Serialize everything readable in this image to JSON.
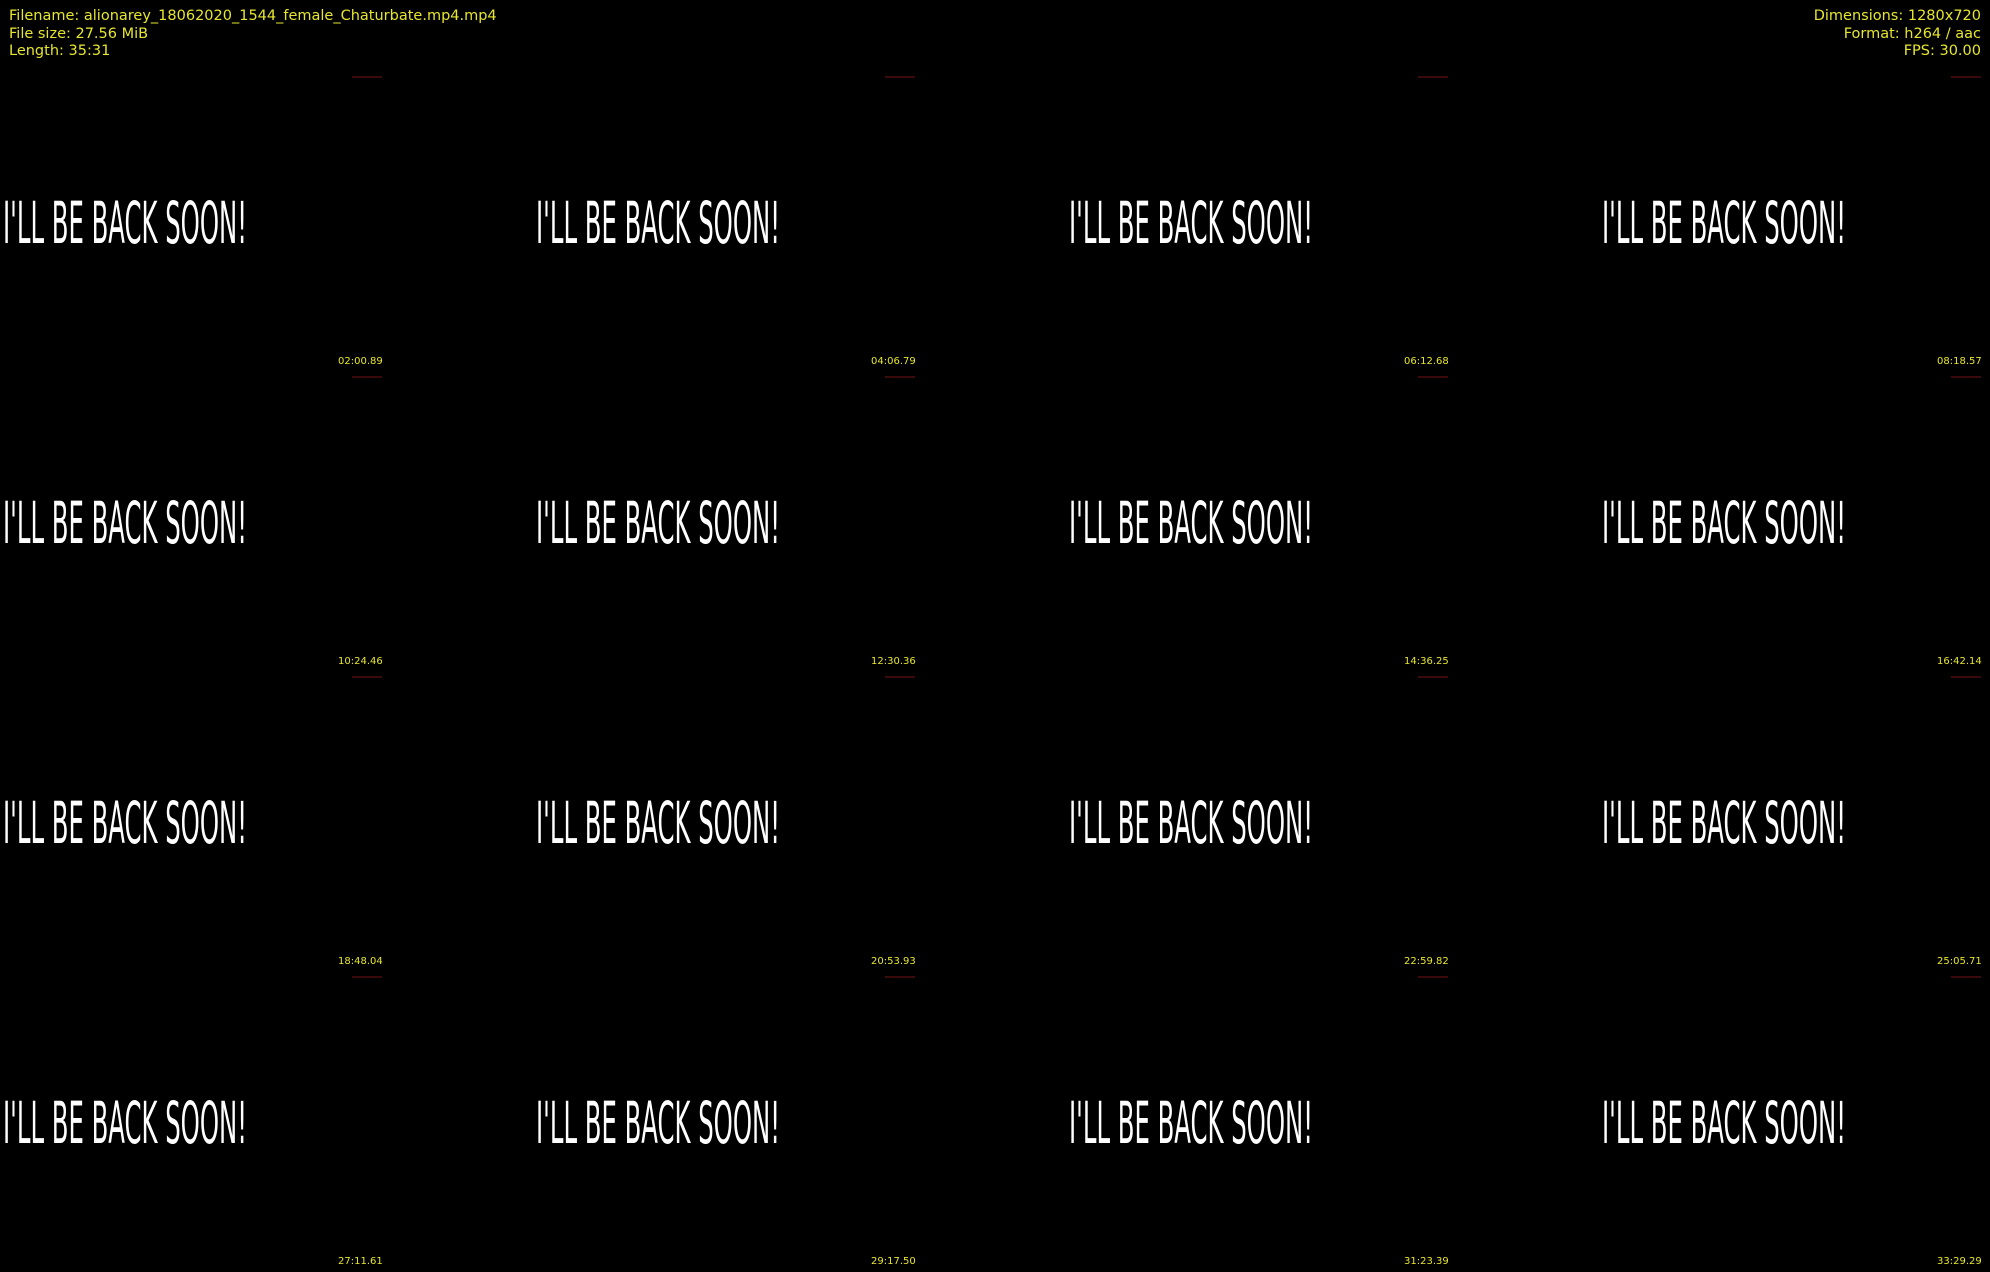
{
  "header": {
    "filename": "Filename: alionarey_18062020_1544_female_Chaturbate.mp4.mp4",
    "file_size": "File size: 27.56 MiB",
    "length": "Length: 35:31",
    "dimensions": "Dimensions: 1280x720",
    "format": "Format: h264 / aac",
    "fps": "FPS: 30.00"
  },
  "colors": {
    "info_text": "#e6e62e",
    "background": "#000000",
    "frame_text": "#ffffff"
  },
  "thumbnails": [
    {
      "text": "I'LL BE BACK SOON!",
      "timestamp": "02:00.89"
    },
    {
      "text": "I'LL BE BACK SOON!",
      "timestamp": "04:06.79"
    },
    {
      "text": "I'LL BE BACK SOON!",
      "timestamp": "06:12.68"
    },
    {
      "text": "I'LL BE BACK SOON!",
      "timestamp": "08:18.57"
    },
    {
      "text": "I'LL BE BACK SOON!",
      "timestamp": "10:24.46"
    },
    {
      "text": "I'LL BE BACK SOON!",
      "timestamp": "12:30.36"
    },
    {
      "text": "I'LL BE BACK SOON!",
      "timestamp": "14:36.25"
    },
    {
      "text": "I'LL BE BACK SOON!",
      "timestamp": "16:42.14"
    },
    {
      "text": "I'LL BE BACK SOON!",
      "timestamp": "18:48.04"
    },
    {
      "text": "I'LL BE BACK SOON!",
      "timestamp": "20:53.93"
    },
    {
      "text": "I'LL BE BACK SOON!",
      "timestamp": "22:59.82"
    },
    {
      "text": "I'LL BE BACK SOON!",
      "timestamp": "25:05.71"
    },
    {
      "text": "I'LL BE BACK SOON!",
      "timestamp": "27:11.61"
    },
    {
      "text": "I'LL BE BACK SOON!",
      "timestamp": "29:17.50"
    },
    {
      "text": "I'LL BE BACK SOON!",
      "timestamp": "31:23.39"
    },
    {
      "text": "I'LL BE BACK SOON!",
      "timestamp": "33:29.29"
    }
  ]
}
